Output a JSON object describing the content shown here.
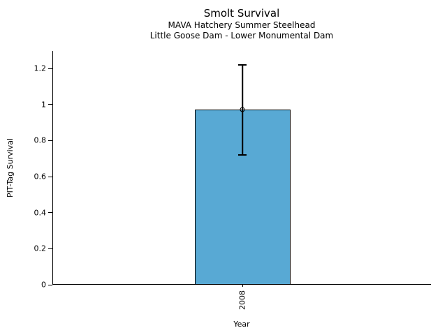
{
  "header": {
    "title": "Smolt Survival",
    "subtitle_line1": "MAVA Hatchery Summer Steelhead",
    "subtitle_line2": "Little Goose Dam - Lower Monumental Dam"
  },
  "chart_data": {
    "type": "bar",
    "title": "Smolt Survival",
    "subtitles": [
      "MAVA Hatchery Summer Steelhead",
      "Little Goose Dam - Lower Monumental Dam"
    ],
    "xlabel": "Year",
    "ylabel": "PIT-Tag Survival",
    "categories": [
      "2008"
    ],
    "values": [
      0.97
    ],
    "error_low": [
      0.72
    ],
    "error_high": [
      1.22
    ],
    "yticks": [
      0,
      0.2,
      0.4,
      0.6,
      0.8,
      1,
      1.2
    ],
    "ytick_labels": [
      "0",
      "0.2",
      "0.4",
      "0.6",
      "0.8",
      "1",
      "1.2"
    ],
    "ylim": [
      0,
      1.3
    ],
    "grid": false,
    "legend": "none",
    "marker": "open-circle",
    "bar_color": "#58A9D4",
    "bar_edge_color": "#000000",
    "errorbar_color": "#000000"
  }
}
